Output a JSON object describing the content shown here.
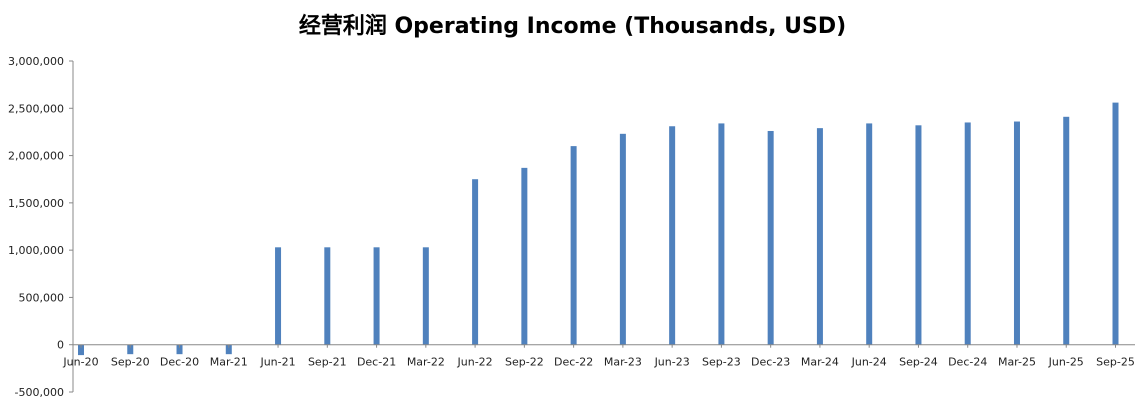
{
  "chart_data": {
    "type": "bar",
    "title": "经营利润 Operating Income (Thousands, USD)",
    "xlabel": "",
    "ylabel": "",
    "ylim": [
      -500000,
      3000000
    ],
    "yticks": [
      "3,000,000",
      "2,500,000",
      "2,000,000",
      "1,500,000",
      "1,000,000",
      "500,000",
      "0",
      "-500,000"
    ],
    "ytick_values": [
      3000000,
      2500000,
      2000000,
      1500000,
      1000000,
      500000,
      0,
      -500000
    ],
    "grid": false,
    "legend": "none",
    "bar_color": "#4F81BD",
    "categories": [
      "Jun-20",
      "Sep-20",
      "Dec-20",
      "Mar-21",
      "Jun-21",
      "Sep-21",
      "Dec-21",
      "Mar-22",
      "Jun-22",
      "Sep-22",
      "Dec-22",
      "Mar-23",
      "Jun-23",
      "Sep-23",
      "Dec-23",
      "Mar-24",
      "Jun-24",
      "Sep-24",
      "Dec-24",
      "Mar-25",
      "Jun-25",
      "Sep-25"
    ],
    "values": [
      -110000,
      -100000,
      -100000,
      -100000,
      1030000,
      1030000,
      1030000,
      1030000,
      1750000,
      1870000,
      2100000,
      2230000,
      2310000,
      2340000,
      2260000,
      2290000,
      2340000,
      2320000,
      2350000,
      2360000,
      2410000,
      2560000
    ]
  }
}
